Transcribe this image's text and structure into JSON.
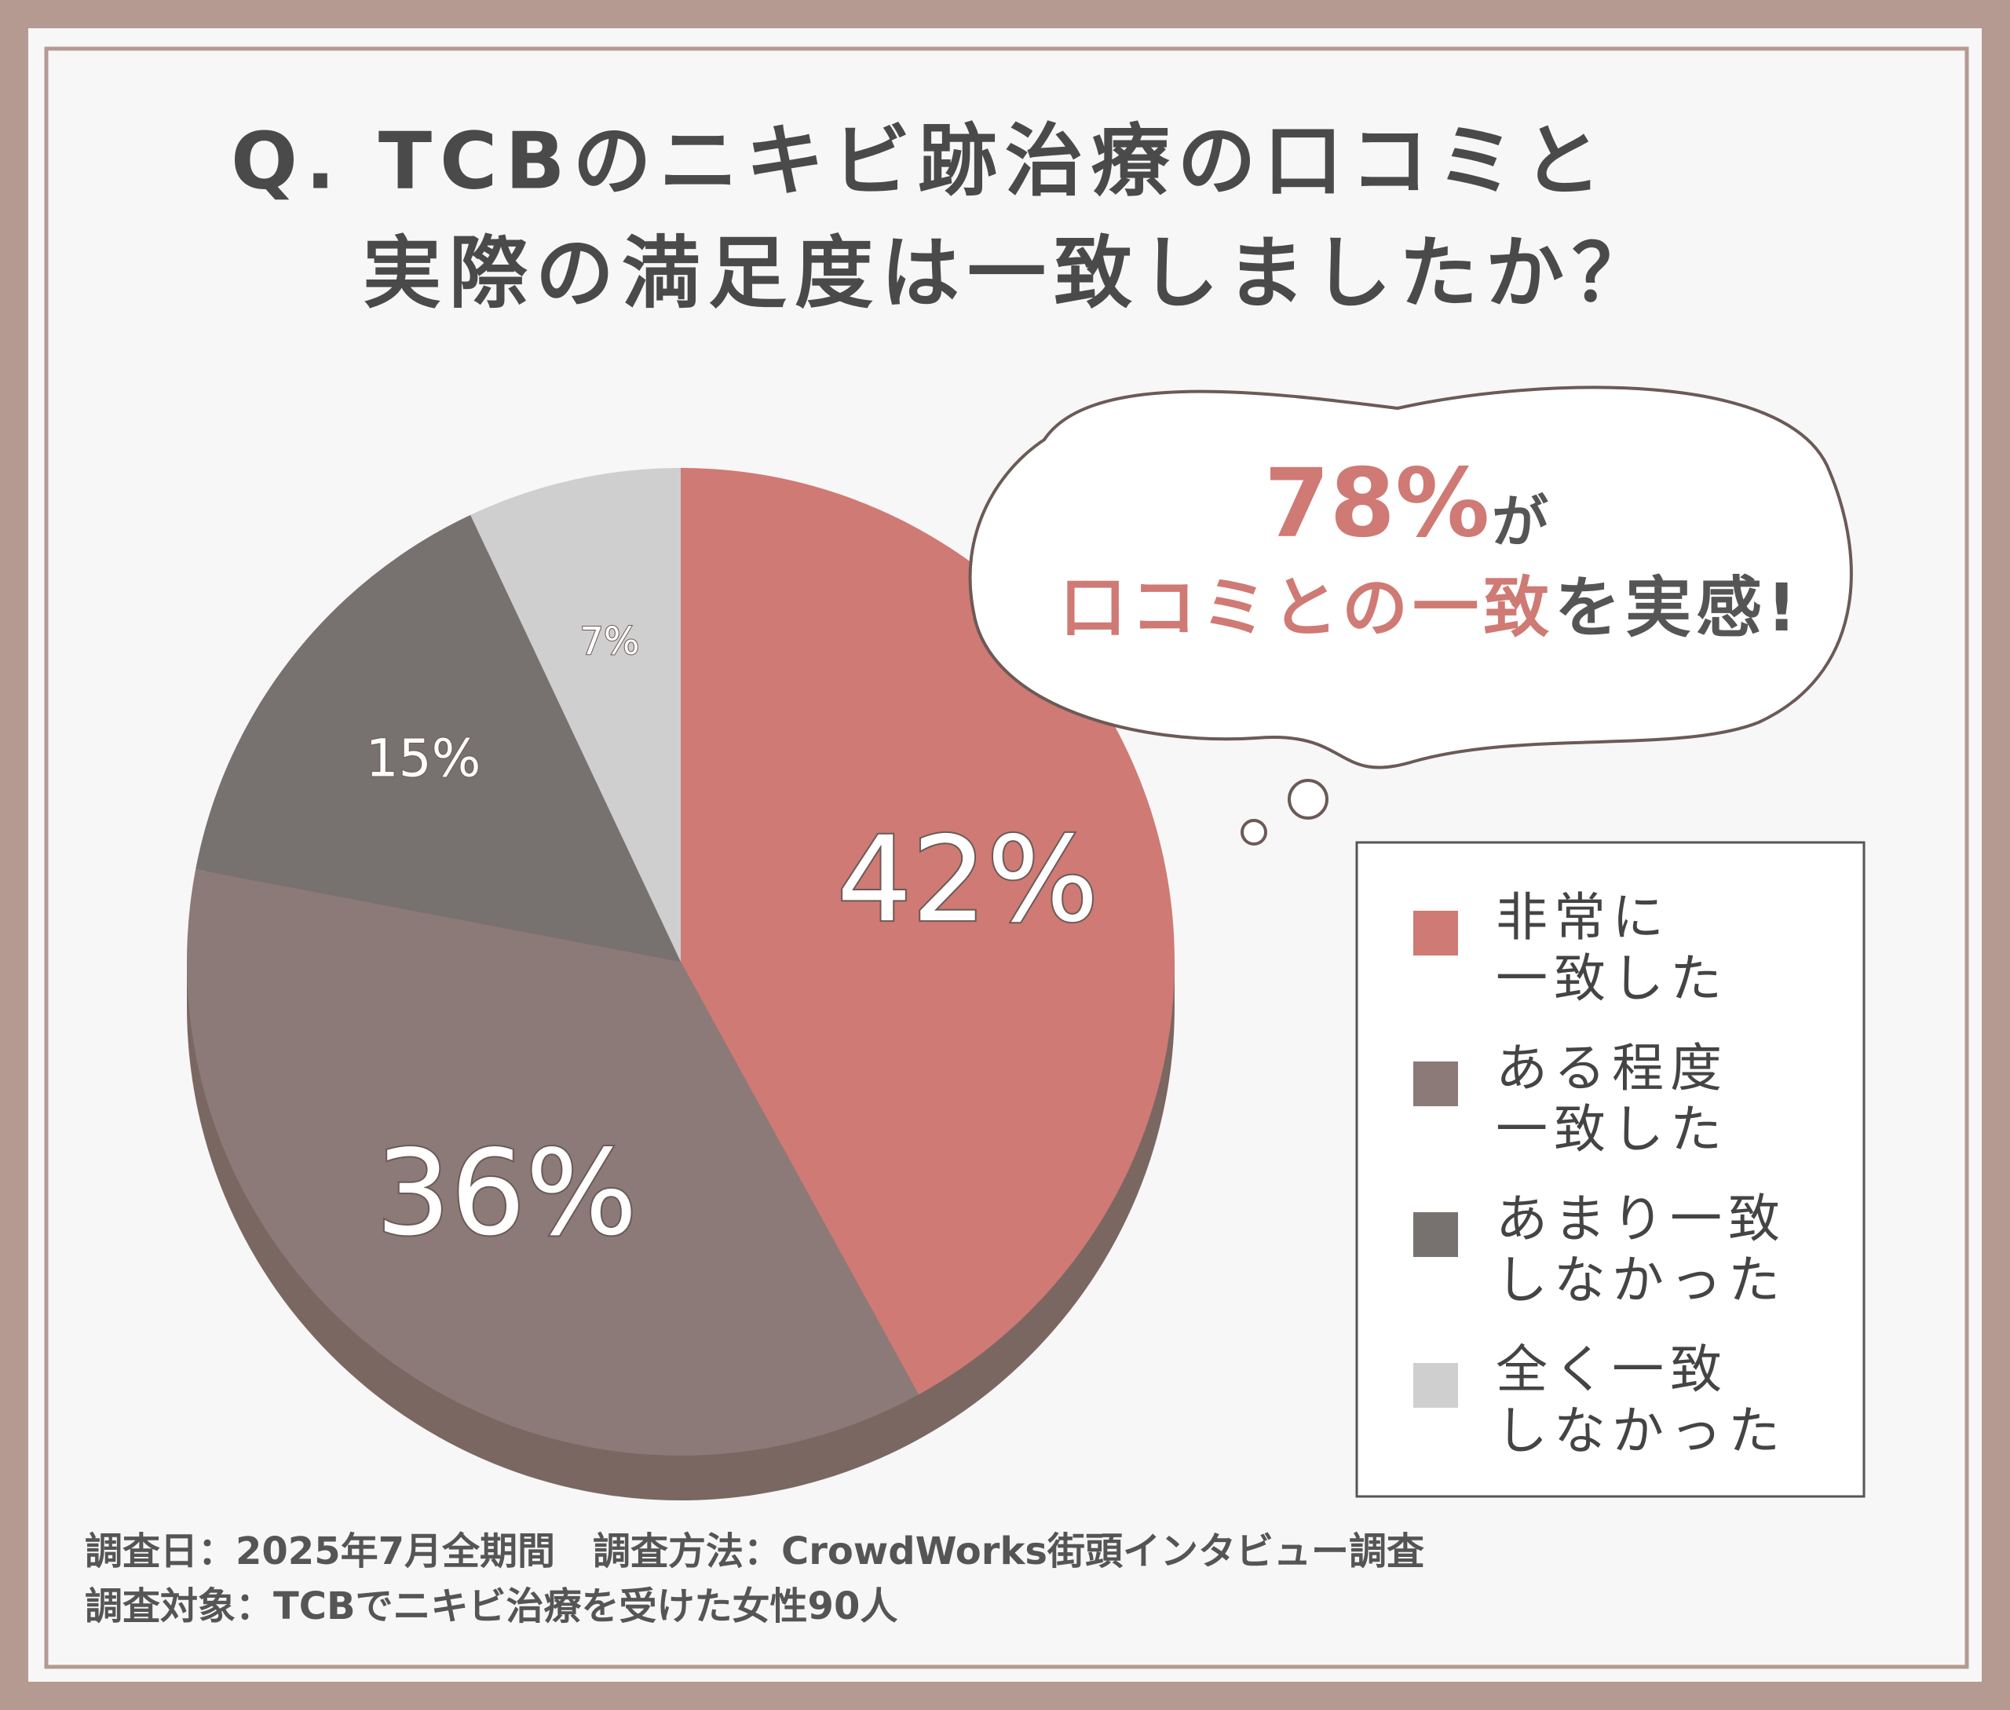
{
  "chart_data": {
    "type": "pie",
    "title": [
      "Q. TCBのニキビ跡治療の口コミと",
      "実際の満足度は一致しましたか？"
    ],
    "categories": [
      "非常に\n一致した",
      "ある程度\n一致した",
      "あまり一致\nしなかった",
      "全く一致\nしなかった"
    ],
    "values": [
      42,
      36,
      15,
      7
    ],
    "value_labels": [
      "42%",
      "36%",
      "15%",
      "7%"
    ],
    "colors": [
      "#cf7a74",
      "#8c7a78",
      "#777170",
      "#cfcfcf"
    ],
    "annotation": {
      "percent": "78%",
      "particle": "が",
      "highlight": "口コミとの一致",
      "rest": "を実感!"
    },
    "notes": [
      "調査日：2025年7月全期間　調査方法：CrowdWorks街頭インタビュー調査",
      "調査対象：TCBでニキビ治療を受けた女性90人"
    ]
  }
}
